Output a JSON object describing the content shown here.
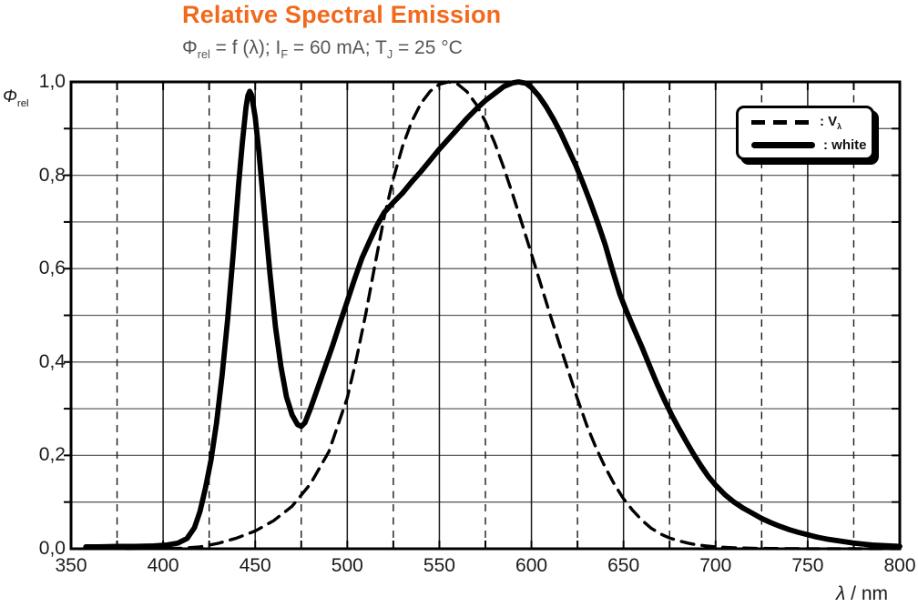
{
  "chart_data": {
    "type": "line",
    "title": "Relative Spectral Emission",
    "subtitle": "Φrel = f (λ); IF = 60 mA; TJ = 25 °C",
    "subtitle_parts": [
      {
        "text": "Φ"
      },
      {
        "text": "rel",
        "sub": true
      },
      {
        "text": " = f (λ); I"
      },
      {
        "text": "F",
        "sub": true
      },
      {
        "text": " = 60 mA; T"
      },
      {
        "text": "J",
        "sub": true
      },
      {
        "text": " = 25 °C"
      }
    ],
    "xlabel": "λ / nm",
    "xlabel_parts": [
      {
        "text": "λ",
        "italic": true
      },
      {
        "text": " / nm"
      }
    ],
    "ylabel": "Φrel",
    "ylabel_parts": [
      {
        "text": "Φ",
        "italic": true
      },
      {
        "text": "rel",
        "sub": true
      }
    ],
    "xlim": [
      350,
      800
    ],
    "ylim": [
      0,
      1
    ],
    "x_major_step": 50,
    "x_minor_step": 25,
    "y_minor_step": 0.1,
    "grid": {
      "vertical": "dashed-minor-solid-major",
      "horizontal": "solid-every-0.1",
      "on": true
    },
    "x_ticks": [
      {
        "value": 350,
        "label": "350"
      },
      {
        "value": 400,
        "label": "400"
      },
      {
        "value": 450,
        "label": "450"
      },
      {
        "value": 500,
        "label": "500"
      },
      {
        "value": 550,
        "label": "550"
      },
      {
        "value": 600,
        "label": "600"
      },
      {
        "value": 650,
        "label": "650"
      },
      {
        "value": 700,
        "label": "700"
      },
      {
        "value": 750,
        "label": "750"
      },
      {
        "value": 800,
        "label": "800"
      }
    ],
    "y_ticks": [
      {
        "value": 1.0,
        "label": "1,0"
      },
      {
        "value": 0.8,
        "label": "0,8"
      },
      {
        "value": 0.6,
        "label": "0,6"
      },
      {
        "value": 0.4,
        "label": "0,4"
      },
      {
        "value": 0.2,
        "label": "0,2"
      },
      {
        "value": 0.0,
        "label": "0,0"
      }
    ],
    "legend": {
      "position": "top-right",
      "entries": [
        {
          "name": "v-lambda",
          "style": "dashed",
          "label_parts": [
            {
              "text": ": V"
            },
            {
              "text": "λ",
              "sub": true
            }
          ]
        },
        {
          "name": "white",
          "style": "solid",
          "label_parts": [
            {
              "text": ": white"
            }
          ]
        }
      ]
    },
    "colors": {
      "title": "#f2691c",
      "subtitle": "#55565a",
      "curves": "#000000",
      "grid_h": "#5f5f5f",
      "grid_v": "#1a1a1a"
    },
    "series": [
      {
        "name": "v-lambda",
        "style": "dashed",
        "points": [
          [
            380,
            0.0002
          ],
          [
            390,
            0.0003
          ],
          [
            400,
            0.0004
          ],
          [
            410,
            0.0012
          ],
          [
            420,
            0.004
          ],
          [
            430,
            0.0116
          ],
          [
            440,
            0.023
          ],
          [
            450,
            0.038
          ],
          [
            460,
            0.06
          ],
          [
            470,
            0.091
          ],
          [
            480,
            0.139
          ],
          [
            490,
            0.208
          ],
          [
            500,
            0.323
          ],
          [
            505,
            0.407
          ],
          [
            510,
            0.503
          ],
          [
            515,
            0.608
          ],
          [
            520,
            0.71
          ],
          [
            525,
            0.793
          ],
          [
            530,
            0.862
          ],
          [
            535,
            0.915
          ],
          [
            540,
            0.954
          ],
          [
            545,
            0.98
          ],
          [
            550,
            0.995
          ],
          [
            555,
            1.0
          ],
          [
            560,
            0.995
          ],
          [
            565,
            0.979
          ],
          [
            570,
            0.952
          ],
          [
            575,
            0.915
          ],
          [
            580,
            0.87
          ],
          [
            585,
            0.816
          ],
          [
            590,
            0.757
          ],
          [
            595,
            0.695
          ],
          [
            600,
            0.631
          ],
          [
            605,
            0.567
          ],
          [
            610,
            0.503
          ],
          [
            615,
            0.441
          ],
          [
            620,
            0.381
          ],
          [
            625,
            0.321
          ],
          [
            630,
            0.265
          ],
          [
            635,
            0.217
          ],
          [
            640,
            0.175
          ],
          [
            645,
            0.138
          ],
          [
            650,
            0.107
          ],
          [
            655,
            0.082
          ],
          [
            660,
            0.061
          ],
          [
            665,
            0.044
          ],
          [
            670,
            0.032
          ],
          [
            675,
            0.023
          ],
          [
            680,
            0.017
          ],
          [
            685,
            0.012
          ],
          [
            690,
            0.0082
          ],
          [
            695,
            0.006
          ],
          [
            700,
            0.0041
          ],
          [
            710,
            0.0021
          ],
          [
            720,
            0.001
          ],
          [
            730,
            0.0005
          ],
          [
            740,
            0.0003
          ],
          [
            750,
            0.0002
          ],
          [
            760,
            0.0001
          ],
          [
            770,
            0.0001
          ],
          [
            780,
            0.0001
          ],
          [
            790,
            0.0001
          ],
          [
            800,
            0.0001
          ]
        ]
      },
      {
        "name": "white",
        "style": "solid",
        "points": [
          [
            358,
            0.004
          ],
          [
            365,
            0.004
          ],
          [
            375,
            0.005
          ],
          [
            385,
            0.005
          ],
          [
            395,
            0.006
          ],
          [
            402,
            0.008
          ],
          [
            408,
            0.012
          ],
          [
            413,
            0.022
          ],
          [
            417,
            0.045
          ],
          [
            420,
            0.08
          ],
          [
            423,
            0.13
          ],
          [
            426,
            0.19
          ],
          [
            429,
            0.27
          ],
          [
            432,
            0.37
          ],
          [
            435,
            0.49
          ],
          [
            438,
            0.63
          ],
          [
            441,
            0.78
          ],
          [
            443,
            0.87
          ],
          [
            445,
            0.945
          ],
          [
            446,
            0.97
          ],
          [
            447,
            0.98
          ],
          [
            448,
            0.972
          ],
          [
            450,
            0.925
          ],
          [
            452,
            0.85
          ],
          [
            455,
            0.72
          ],
          [
            458,
            0.59
          ],
          [
            461,
            0.475
          ],
          [
            464,
            0.39
          ],
          [
            467,
            0.325
          ],
          [
            470,
            0.287
          ],
          [
            473,
            0.266
          ],
          [
            475,
            0.262
          ],
          [
            477,
            0.27
          ],
          [
            480,
            0.3
          ],
          [
            484,
            0.345
          ],
          [
            488,
            0.39
          ],
          [
            492,
            0.435
          ],
          [
            496,
            0.483
          ],
          [
            500,
            0.53
          ],
          [
            504,
            0.578
          ],
          [
            508,
            0.623
          ],
          [
            512,
            0.658
          ],
          [
            516,
            0.692
          ],
          [
            520,
            0.72
          ],
          [
            525,
            0.742
          ],
          [
            530,
            0.762
          ],
          [
            535,
            0.786
          ],
          [
            540,
            0.808
          ],
          [
            545,
            0.832
          ],
          [
            550,
            0.856
          ],
          [
            555,
            0.878
          ],
          [
            560,
            0.9
          ],
          [
            565,
            0.922
          ],
          [
            570,
            0.942
          ],
          [
            575,
            0.96
          ],
          [
            580,
            0.975
          ],
          [
            585,
            0.99
          ],
          [
            590,
            0.998
          ],
          [
            593,
            1.0
          ],
          [
            597,
            0.997
          ],
          [
            600,
            0.988
          ],
          [
            604,
            0.97
          ],
          [
            608,
            0.947
          ],
          [
            612,
            0.92
          ],
          [
            616,
            0.89
          ],
          [
            620,
            0.856
          ],
          [
            624,
            0.822
          ],
          [
            628,
            0.783
          ],
          [
            632,
            0.742
          ],
          [
            636,
            0.698
          ],
          [
            640,
            0.652
          ],
          [
            644,
            0.597
          ],
          [
            648,
            0.545
          ],
          [
            652,
            0.505
          ],
          [
            656,
            0.468
          ],
          [
            660,
            0.432
          ],
          [
            664,
            0.393
          ],
          [
            668,
            0.355
          ],
          [
            672,
            0.32
          ],
          [
            676,
            0.288
          ],
          [
            680,
            0.258
          ],
          [
            684,
            0.23
          ],
          [
            688,
            0.203
          ],
          [
            692,
            0.178
          ],
          [
            696,
            0.155
          ],
          [
            700,
            0.136
          ],
          [
            705,
            0.116
          ],
          [
            710,
            0.1
          ],
          [
            715,
            0.087
          ],
          [
            720,
            0.076
          ],
          [
            725,
            0.065
          ],
          [
            730,
            0.056
          ],
          [
            735,
            0.048
          ],
          [
            740,
            0.041
          ],
          [
            745,
            0.035
          ],
          [
            750,
            0.03
          ],
          [
            755,
            0.025
          ],
          [
            760,
            0.021
          ],
          [
            765,
            0.018
          ],
          [
            770,
            0.015
          ],
          [
            775,
            0.012
          ],
          [
            780,
            0.01
          ],
          [
            785,
            0.008
          ],
          [
            790,
            0.007
          ],
          [
            795,
            0.006
          ],
          [
            800,
            0.005
          ]
        ]
      }
    ]
  }
}
